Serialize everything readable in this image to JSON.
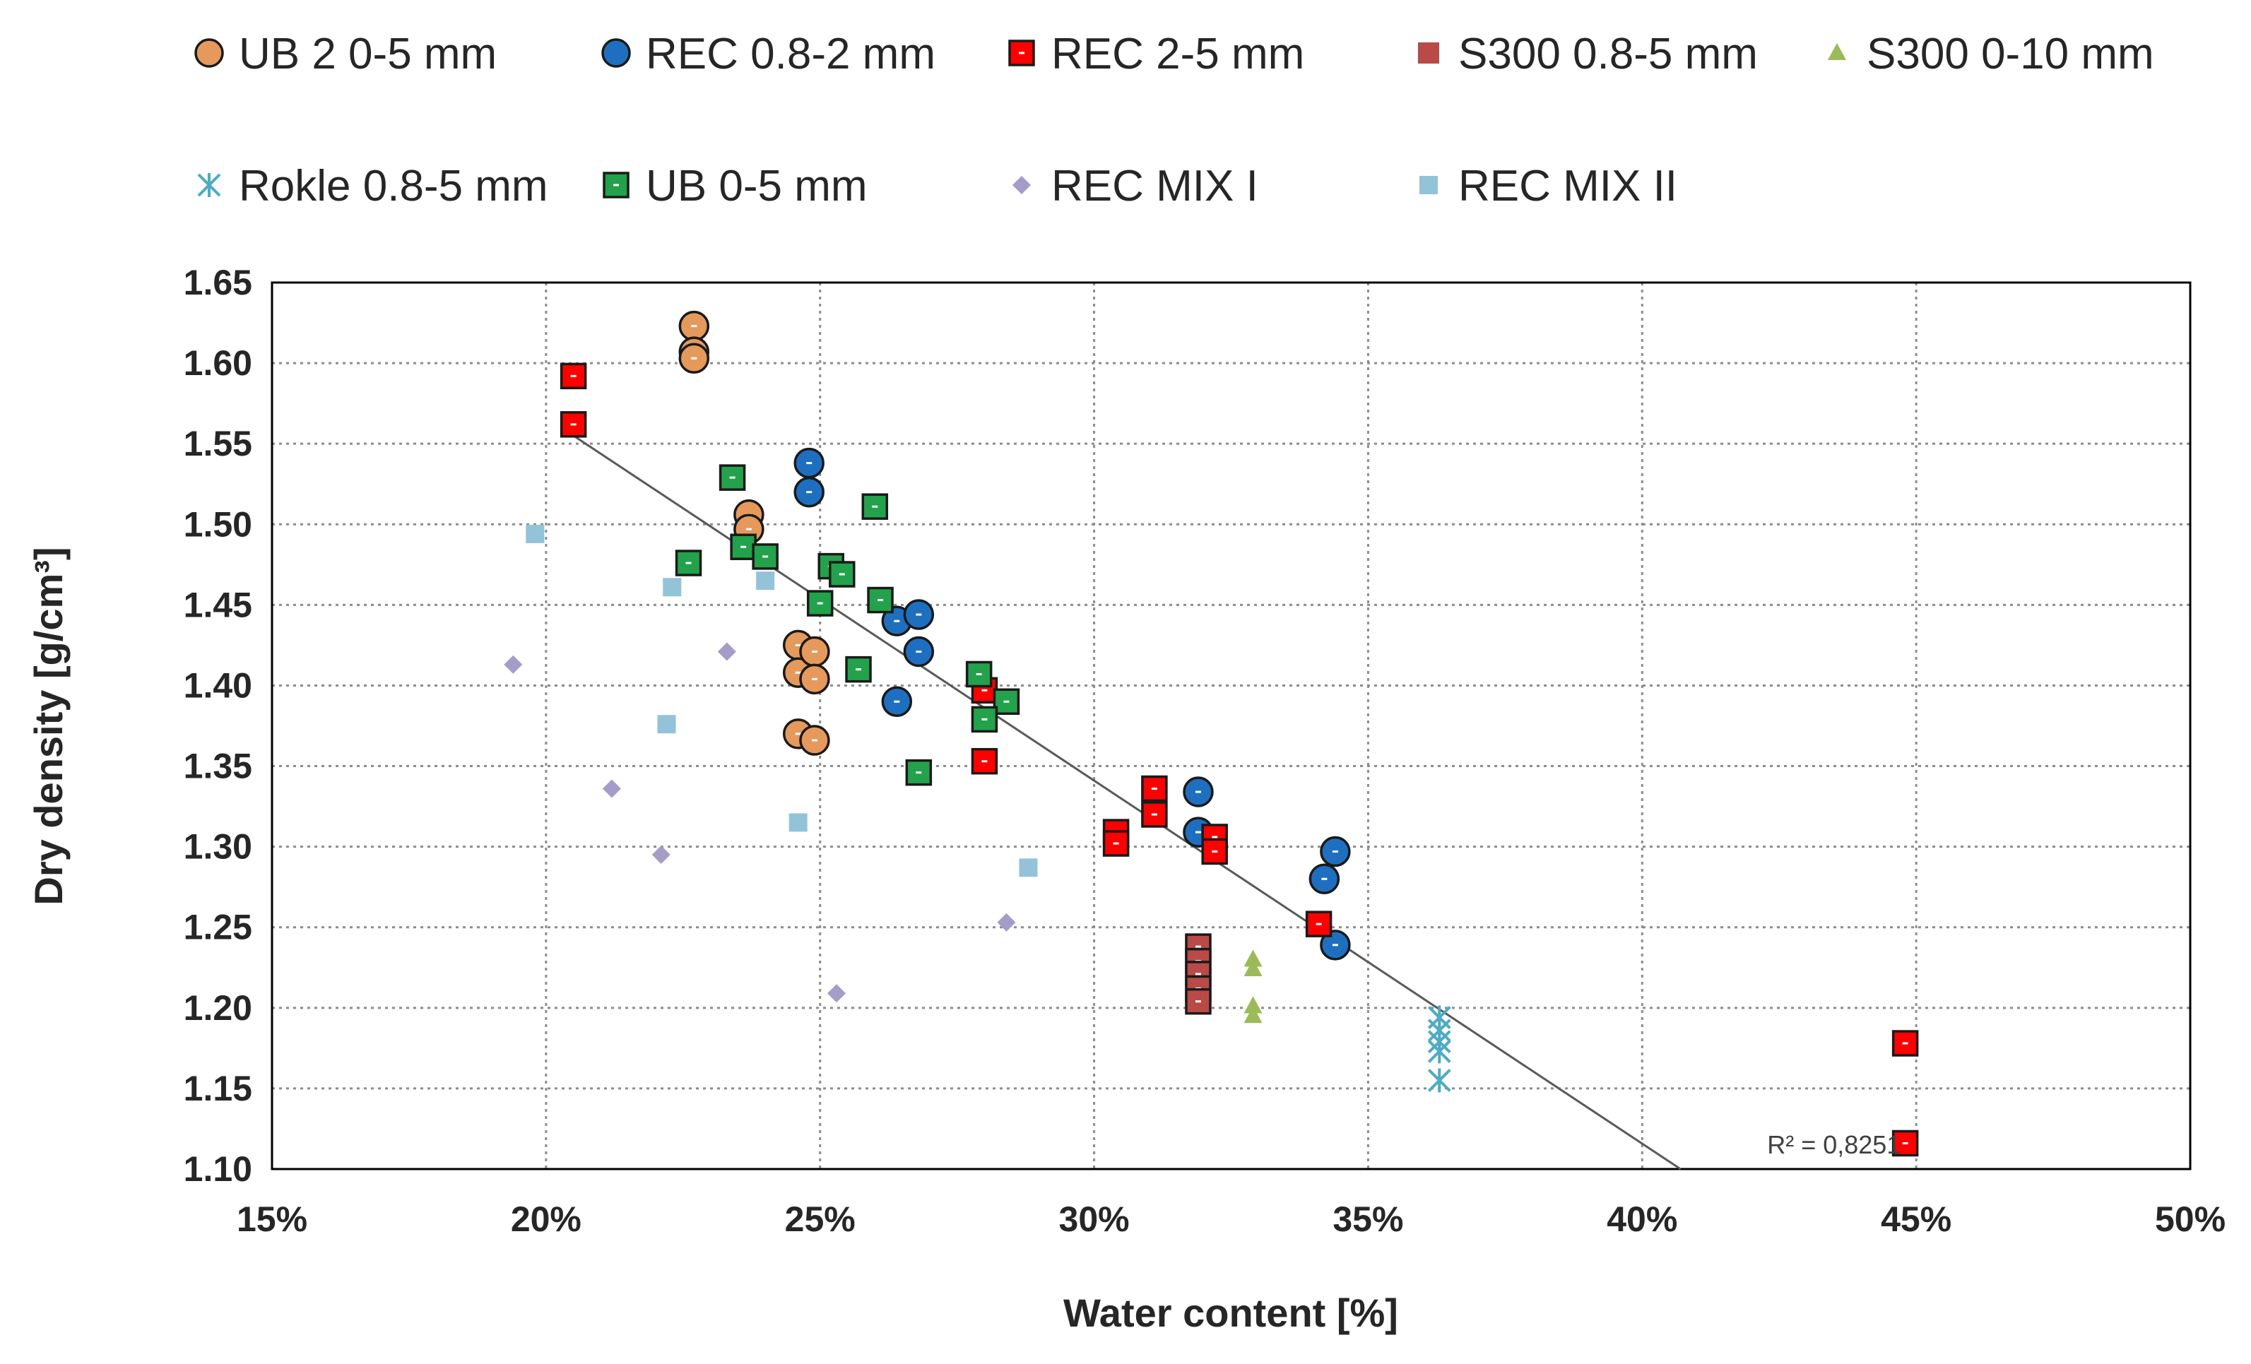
{
  "chart_data": {
    "type": "scatter",
    "title": "",
    "xlabel": "Water content [%]",
    "ylabel": "Dry density [g/cm³]",
    "xlim": [
      15,
      50
    ],
    "ylim": [
      1.1,
      1.65
    ],
    "x_ticks": [
      15,
      20,
      25,
      30,
      35,
      40,
      45,
      50
    ],
    "x_tick_labels": [
      "15%",
      "20%",
      "25%",
      "30%",
      "35%",
      "40%",
      "45%",
      "50%"
    ],
    "y_ticks": [
      1.1,
      1.15,
      1.2,
      1.25,
      1.3,
      1.35,
      1.4,
      1.45,
      1.5,
      1.55,
      1.6,
      1.65
    ],
    "y_tick_labels": [
      "1.10",
      "1.15",
      "1.20",
      "1.25",
      "1.30",
      "1.35",
      "1.40",
      "1.45",
      "1.50",
      "1.55",
      "1.60",
      "1.65"
    ],
    "grid": true,
    "legend_position": "top",
    "series": [
      {
        "name": "UB 2 0-5 mm",
        "marker": "circle",
        "color": "#E59A5C",
        "points": [
          [
            22.7,
            1.623
          ],
          [
            22.7,
            1.607
          ],
          [
            22.7,
            1.603
          ],
          [
            23.7,
            1.506
          ],
          [
            23.7,
            1.497
          ],
          [
            24.6,
            1.425
          ],
          [
            24.6,
            1.408
          ],
          [
            24.9,
            1.421
          ],
          [
            24.9,
            1.404
          ],
          [
            24.6,
            1.37
          ],
          [
            24.9,
            1.366
          ]
        ]
      },
      {
        "name": "REC 0.8-2 mm",
        "marker": "circle",
        "color": "#1F6FC0",
        "points": [
          [
            24.8,
            1.538
          ],
          [
            24.8,
            1.52
          ],
          [
            26.4,
            1.44
          ],
          [
            26.8,
            1.444
          ],
          [
            26.8,
            1.421
          ],
          [
            26.4,
            1.39
          ],
          [
            31.9,
            1.334
          ],
          [
            31.9,
            1.309
          ],
          [
            34.2,
            1.28
          ],
          [
            34.4,
            1.297
          ],
          [
            34.4,
            1.239
          ]
        ]
      },
      {
        "name": "REC 2-5 mm",
        "marker": "square",
        "color": "#FF0000",
        "points": [
          [
            20.5,
            1.592
          ],
          [
            20.5,
            1.562
          ],
          [
            28.0,
            1.397
          ],
          [
            28.0,
            1.353
          ],
          [
            30.4,
            1.309
          ],
          [
            30.4,
            1.302
          ],
          [
            31.1,
            1.336
          ],
          [
            31.1,
            1.32
          ],
          [
            32.2,
            1.306
          ],
          [
            32.2,
            1.297
          ],
          [
            34.1,
            1.252
          ],
          [
            44.8,
            1.178
          ],
          [
            44.8,
            1.116
          ]
        ]
      },
      {
        "name": "S300 0.8-5 mm",
        "marker": "square",
        "color": "#B94A48",
        "points": [
          [
            31.9,
            1.238
          ],
          [
            31.9,
            1.229
          ],
          [
            31.9,
            1.221
          ],
          [
            31.9,
            1.212
          ],
          [
            31.9,
            1.204
          ]
        ]
      },
      {
        "name": "S300 0-10 mm",
        "marker": "triangle",
        "color": "#9BBB59",
        "points": [
          [
            32.9,
            1.23
          ],
          [
            32.9,
            1.224
          ],
          [
            32.9,
            1.201
          ],
          [
            32.9,
            1.195
          ]
        ]
      },
      {
        "name": "Rokle 0.8-5 mm",
        "marker": "asterisk",
        "color": "#4BACC6",
        "points": [
          [
            36.3,
            1.194
          ],
          [
            36.3,
            1.186
          ],
          [
            36.3,
            1.179
          ],
          [
            36.3,
            1.173
          ],
          [
            36.3,
            1.155
          ]
        ]
      },
      {
        "name": "UB 0-5 mm",
        "marker": "square",
        "color": "#22A34B",
        "points": [
          [
            23.4,
            1.529
          ],
          [
            22.6,
            1.476
          ],
          [
            23.6,
            1.486
          ],
          [
            24.0,
            1.48
          ],
          [
            25.0,
            1.451
          ],
          [
            25.2,
            1.474
          ],
          [
            25.4,
            1.469
          ],
          [
            26.0,
            1.511
          ],
          [
            26.1,
            1.453
          ],
          [
            25.7,
            1.41
          ],
          [
            27.9,
            1.407
          ],
          [
            28.4,
            1.39
          ],
          [
            28.0,
            1.379
          ],
          [
            26.8,
            1.346
          ]
        ]
      },
      {
        "name": "REC MIX I",
        "marker": "diamond",
        "color": "#A69CC9",
        "points": [
          [
            19.4,
            1.413
          ],
          [
            21.2,
            1.336
          ],
          [
            22.1,
            1.295
          ],
          [
            23.3,
            1.421
          ],
          [
            25.3,
            1.209
          ],
          [
            28.4,
            1.253
          ]
        ]
      },
      {
        "name": "REC MIX II",
        "marker": "square-small",
        "color": "#93C3D9",
        "points": [
          [
            19.8,
            1.494
          ],
          [
            22.3,
            1.461
          ],
          [
            24.0,
            1.465
          ],
          [
            22.2,
            1.376
          ],
          [
            24.6,
            1.315
          ],
          [
            28.8,
            1.287
          ]
        ]
      }
    ],
    "trendline": {
      "type": "linear",
      "x_start": 20.5,
      "y_start": 1.555,
      "x_end": 40.7,
      "y_end": 1.1,
      "color": "#595959"
    },
    "annotations": [
      {
        "text": "R² = 0,8251",
        "x": 43.5,
        "y": 1.115
      }
    ]
  }
}
